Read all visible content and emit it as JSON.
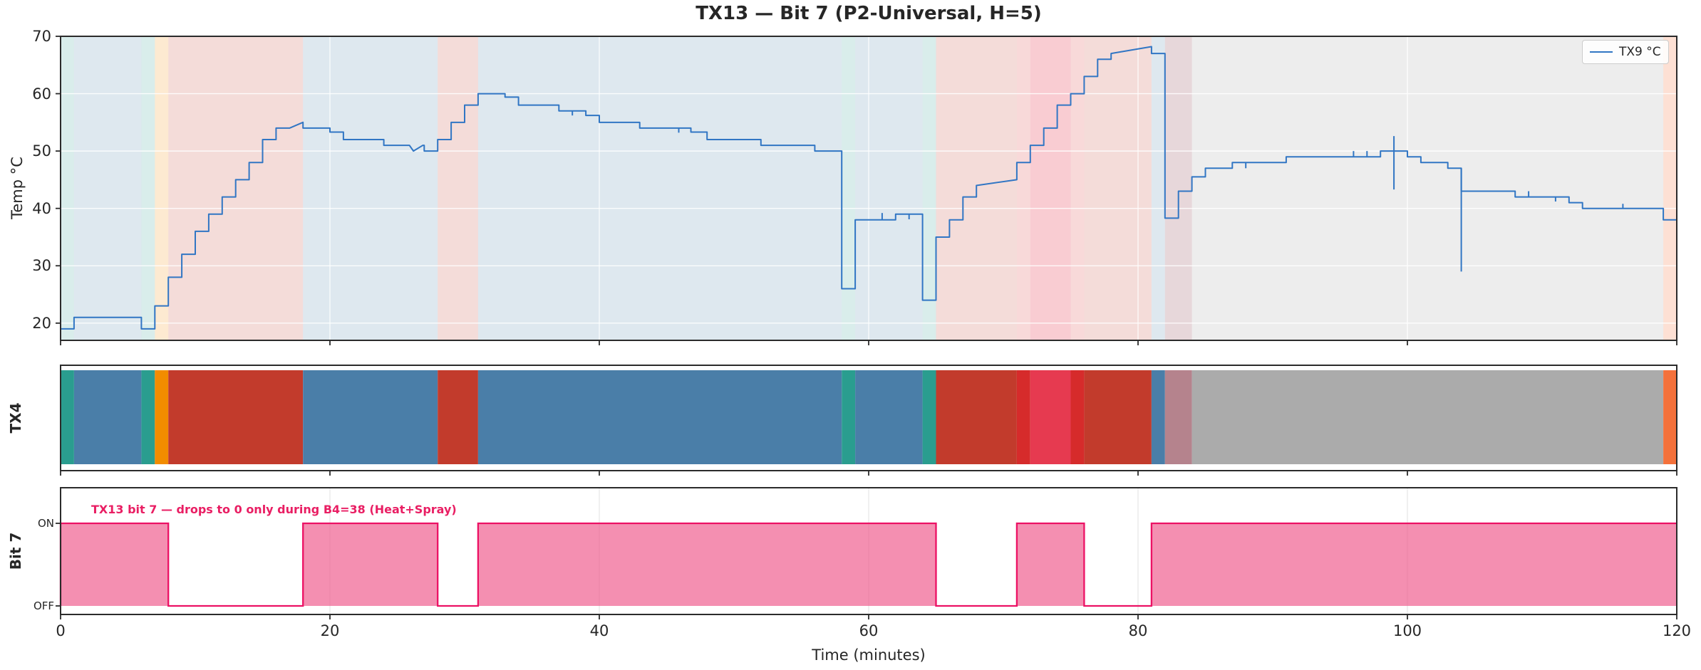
{
  "title": "TX13 — Bit 7 (P2-Universal, H=5)",
  "xaxis": {
    "label": "Time (minutes)",
    "ticks": [
      0,
      20,
      40,
      60,
      80,
      100,
      120
    ],
    "min": 0,
    "max": 120
  },
  "panels": {
    "temp": {
      "ylabel": "Temp °C",
      "yticks": [
        20,
        30,
        40,
        50,
        60,
        70
      ],
      "ymin": 17,
      "ymax": 70,
      "legend_label": "TX9 °C",
      "line_color": "#3176c4"
    },
    "tx4": {
      "ylabel": "TX4"
    },
    "bit7": {
      "ylabel": "Bit 7",
      "on_label": "ON",
      "off_label": "OFF",
      "annotation": "TX13 bit 7 — drops to 0 only during B4=38 (Heat+Spray)",
      "annotation_color": "#e91e63",
      "fill_color": "#ef5a8c",
      "stroke_color": "#ec1164"
    }
  },
  "palette": {
    "teal": "#2a9d8f",
    "blue": "#4a7ea8",
    "orange": "#f28c00",
    "brick": "#c23b2c",
    "red": "#d62b2b",
    "crimson": "#e63a50",
    "rose": "#b5838d",
    "gray": "#ababab",
    "orangered": "#f4713b"
  },
  "band_alpha": {
    "default": 0.18,
    "crimson": 0.26,
    "rose": 0.32,
    "gray": 0.22,
    "orangered": 0.22
  },
  "chart_data": [
    {
      "type": "line",
      "name": "TX9 °C",
      "panel": "temp",
      "step_style": "explicit-vertices",
      "x_units": "minutes",
      "y_units": "degC",
      "vertices": [
        [
          0,
          19
        ],
        [
          1,
          19
        ],
        [
          1,
          21
        ],
        [
          6,
          21
        ],
        [
          6,
          19
        ],
        [
          7,
          19
        ],
        [
          7,
          23
        ],
        [
          8,
          23
        ],
        [
          8,
          28
        ],
        [
          9,
          28
        ],
        [
          9,
          32
        ],
        [
          10,
          32
        ],
        [
          10,
          36
        ],
        [
          11,
          36
        ],
        [
          11,
          39
        ],
        [
          12,
          39
        ],
        [
          12,
          42
        ],
        [
          13,
          42
        ],
        [
          13,
          45
        ],
        [
          14,
          45
        ],
        [
          14,
          48
        ],
        [
          15,
          48
        ],
        [
          15,
          52
        ],
        [
          16,
          52
        ],
        [
          16,
          54
        ],
        [
          17,
          54
        ],
        [
          18,
          55
        ],
        [
          18,
          54
        ],
        [
          20,
          54
        ],
        [
          20,
          53.3
        ],
        [
          21,
          53.3
        ],
        [
          21,
          52
        ],
        [
          24,
          52
        ],
        [
          24,
          51
        ],
        [
          25.9,
          51
        ],
        [
          26.2,
          50
        ],
        [
          26.9,
          51
        ],
        [
          27,
          51
        ],
        [
          27,
          50
        ],
        [
          28,
          50
        ],
        [
          28,
          52
        ],
        [
          29,
          52
        ],
        [
          29,
          55
        ],
        [
          30,
          55
        ],
        [
          30,
          58
        ],
        [
          31,
          58
        ],
        [
          31,
          60
        ],
        [
          33,
          60
        ],
        [
          33,
          59.4
        ],
        [
          34,
          59.4
        ],
        [
          34,
          58
        ],
        [
          37,
          58
        ],
        [
          37,
          57
        ],
        [
          39,
          57
        ],
        [
          39,
          56.2
        ],
        [
          40,
          56.2
        ],
        [
          40,
          55
        ],
        [
          43,
          55
        ],
        [
          43,
          54
        ],
        [
          46.8,
          54
        ],
        [
          46.8,
          53.3
        ],
        [
          48,
          53.3
        ],
        [
          48,
          52
        ],
        [
          52,
          52
        ],
        [
          52,
          51
        ],
        [
          56,
          51
        ],
        [
          56,
          50
        ],
        [
          58,
          50
        ],
        [
          58,
          26
        ],
        [
          59,
          26
        ],
        [
          59,
          38
        ],
        [
          62,
          38
        ],
        [
          62,
          39
        ],
        [
          64,
          39
        ],
        [
          64,
          24
        ],
        [
          65,
          24
        ],
        [
          65,
          35
        ],
        [
          66,
          35
        ],
        [
          66,
          38
        ],
        [
          67,
          38
        ],
        [
          67,
          42
        ],
        [
          68,
          42
        ],
        [
          68,
          44
        ],
        [
          71,
          45
        ],
        [
          71,
          48
        ],
        [
          72,
          48
        ],
        [
          72,
          51
        ],
        [
          73,
          51
        ],
        [
          73,
          54
        ],
        [
          74,
          54
        ],
        [
          74,
          58
        ],
        [
          75,
          58
        ],
        [
          75,
          60
        ],
        [
          76,
          60
        ],
        [
          76,
          63
        ],
        [
          77,
          63
        ],
        [
          77,
          66
        ],
        [
          78,
          66
        ],
        [
          78,
          67
        ],
        [
          81,
          68.2
        ],
        [
          81,
          67
        ],
        [
          82,
          67
        ],
        [
          82,
          38.3
        ],
        [
          83,
          38.3
        ],
        [
          83,
          43
        ],
        [
          84,
          43
        ],
        [
          84,
          45.5
        ],
        [
          85,
          45.5
        ],
        [
          85,
          47
        ],
        [
          87,
          47
        ],
        [
          87,
          48
        ],
        [
          91,
          48
        ],
        [
          91,
          49
        ],
        [
          98,
          49
        ],
        [
          98,
          50
        ],
        [
          100,
          50
        ],
        [
          100,
          49
        ],
        [
          101,
          49
        ],
        [
          101,
          48
        ],
        [
          103,
          48
        ],
        [
          103,
          47
        ],
        [
          104,
          47
        ],
        [
          104,
          43
        ],
        [
          108,
          43
        ],
        [
          108,
          42
        ],
        [
          112,
          42
        ],
        [
          112,
          41
        ],
        [
          113,
          41
        ],
        [
          113,
          40
        ],
        [
          119,
          40
        ],
        [
          119,
          38
        ],
        [
          120,
          38
        ]
      ],
      "glitch_spikes": [
        [
          38,
          56.2,
          57
        ],
        [
          45.9,
          53.2,
          54
        ],
        [
          61,
          38,
          39.2
        ],
        [
          63,
          38.1,
          39
        ],
        [
          88,
          47,
          48
        ],
        [
          96,
          49,
          50
        ],
        [
          97,
          49,
          50
        ],
        [
          99,
          43.3,
          52.6
        ],
        [
          104,
          29,
          47
        ],
        [
          109,
          42,
          43
        ],
        [
          111,
          41.2,
          42
        ],
        [
          116,
          40,
          40.8
        ]
      ]
    },
    {
      "type": "heatmap",
      "name": "TX4 program timeline",
      "panel": "tx4",
      "segments": [
        {
          "start": 0,
          "end": 1,
          "color": "teal"
        },
        {
          "start": 1,
          "end": 6,
          "color": "blue"
        },
        {
          "start": 6,
          "end": 7,
          "color": "teal"
        },
        {
          "start": 7,
          "end": 8,
          "color": "orange"
        },
        {
          "start": 8,
          "end": 18,
          "color": "brick"
        },
        {
          "start": 18,
          "end": 28,
          "color": "blue"
        },
        {
          "start": 28,
          "end": 31,
          "color": "brick"
        },
        {
          "start": 31,
          "end": 58,
          "color": "blue"
        },
        {
          "start": 58,
          "end": 59,
          "color": "teal"
        },
        {
          "start": 59,
          "end": 64,
          "color": "blue"
        },
        {
          "start": 64,
          "end": 65,
          "color": "teal"
        },
        {
          "start": 65,
          "end": 71,
          "color": "brick"
        },
        {
          "start": 71,
          "end": 72,
          "color": "red"
        },
        {
          "start": 72,
          "end": 75,
          "color": "crimson"
        },
        {
          "start": 75,
          "end": 76,
          "color": "red"
        },
        {
          "start": 76,
          "end": 81,
          "color": "brick"
        },
        {
          "start": 81,
          "end": 82,
          "color": "blue"
        },
        {
          "start": 82,
          "end": 84,
          "color": "rose"
        },
        {
          "start": 84,
          "end": 119,
          "color": "gray"
        },
        {
          "start": 119,
          "end": 120,
          "color": "orangered"
        }
      ],
      "note": "same segments shown as translucent background bands on temp panel"
    },
    {
      "type": "area",
      "name": "Bit 7 digital signal",
      "panel": "bit7",
      "levels": [
        "OFF",
        "ON"
      ],
      "on_intervals": [
        [
          0,
          8
        ],
        [
          18,
          28
        ],
        [
          31,
          65
        ],
        [
          71,
          76
        ],
        [
          81,
          120
        ]
      ]
    }
  ]
}
